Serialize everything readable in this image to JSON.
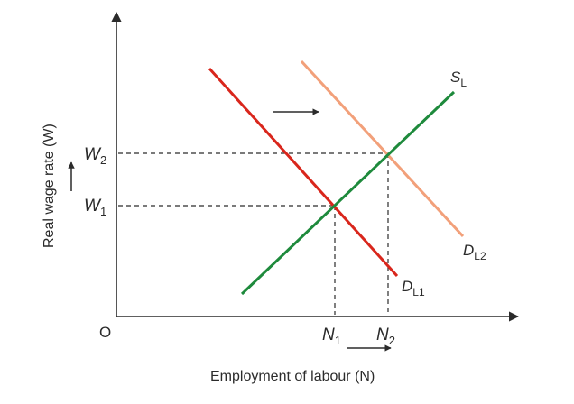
{
  "diagram": {
    "origin_label": "O",
    "y_axis_label": "Real wage rate (W)",
    "x_axis_label": "Employment of labour (N)",
    "w1_main": "W",
    "w1_sub": "1",
    "w2_main": "W",
    "w2_sub": "2",
    "n1_main": "N",
    "n1_sub": "1",
    "n2_main": "N",
    "n2_sub": "2",
    "supply_main": "S",
    "supply_sub": "L",
    "demand1_main": "D",
    "demand1_sub": "L1",
    "demand2_main": "D",
    "demand2_sub": "L2",
    "colors": {
      "axis": "#2b2b2b",
      "supply": "#1e8a3c",
      "demand1": "#d9261c",
      "demand2": "#f2a07a",
      "guide": "#2b2b2b"
    }
  }
}
